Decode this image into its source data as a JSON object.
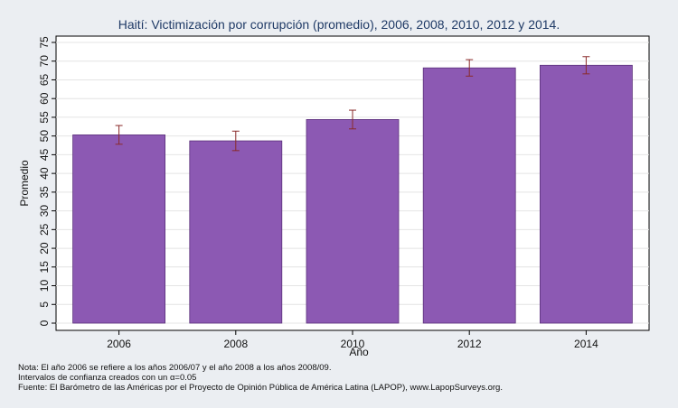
{
  "chart_data": {
    "type": "bar",
    "title": "Haití: Victimización por corrupción (promedio), 2006, 2008, 2010, 2012 y 2014.",
    "xlabel": "Año",
    "ylabel": "Promedio",
    "categories": [
      "2006",
      "2008",
      "2010",
      "2012",
      "2014"
    ],
    "values": [
      50.3,
      48.7,
      54.4,
      68.2,
      68.9
    ],
    "ci_low": [
      47.8,
      46.1,
      51.9,
      66.0,
      66.6
    ],
    "ci_high": [
      52.8,
      51.3,
      56.9,
      70.4,
      71.2
    ],
    "ylim": [
      0,
      77
    ],
    "yticks": [
      0,
      5,
      10,
      15,
      20,
      25,
      30,
      35,
      40,
      45,
      50,
      55,
      60,
      65,
      70,
      75
    ],
    "grid": true,
    "colors": {
      "bar": "#8c59b3",
      "bar_edge": "#5a2f7a",
      "error_bar": "#8a2a2a",
      "plot_background": "#ffffff",
      "page_background": "#ebeef2",
      "title": "#1f3a66"
    }
  },
  "notes": [
    "Nota: El año 2006 se refiere a los años 2006/07 y el año 2008 a los años 2008/09.",
    "Intervalos de confianza creados con un α=0.05",
    "Fuente: El Barómetro de las Américas por el Proyecto de Opinión Pública de América Latina (LAPOP), www.LapopSurveys.org."
  ]
}
